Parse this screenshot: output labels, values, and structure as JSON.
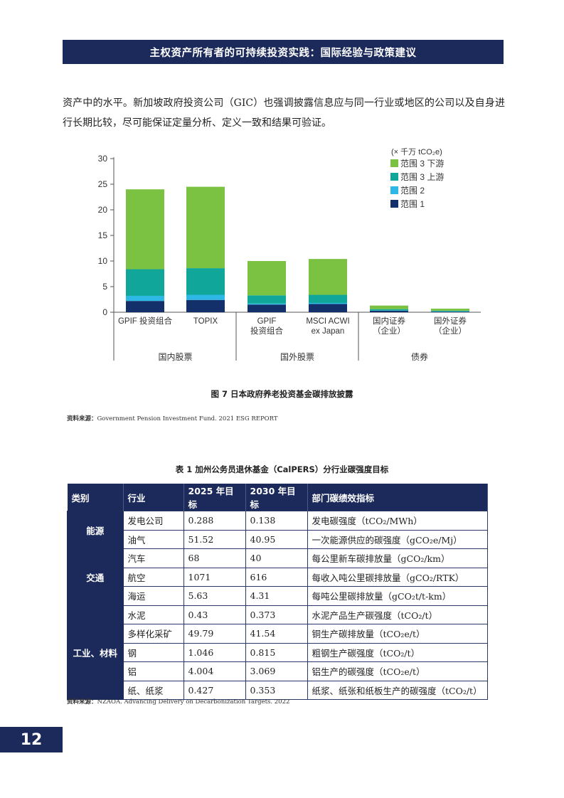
{
  "header": {
    "title": "主权资产所有者的可持续投资实践：国际经验与政策建议"
  },
  "body": {
    "paragraph": "资产中的水平。新加坡政府投资公司（GIC）也强调披露信息应与同一行业或地区的公司以及自身进行长期比较，尽可能保证定量分析、定义一致和结果可验证。"
  },
  "chart_data": {
    "type": "bar",
    "stacked": true,
    "unit_label": "(× 千万 tCO₂e)",
    "categories": [
      "GPIF 投资组合",
      "TOPIX",
      "GPIF|投资组合",
      "MSCI ACWI|ex Japan",
      "国内证券|（企业）",
      "国外证券|（企业）"
    ],
    "groups": [
      {
        "label": "国内股票",
        "categories": [
          0,
          1
        ]
      },
      {
        "label": "国外股票",
        "categories": [
          2,
          3
        ]
      },
      {
        "label": "债券",
        "categories": [
          4,
          5
        ]
      }
    ],
    "series": [
      {
        "name": "范围 1",
        "color": "#13306b",
        "values": [
          2.2,
          2.4,
          1.5,
          1.6,
          0.3,
          0.1
        ]
      },
      {
        "name": "范围 2",
        "color": "#2eb8e6",
        "values": [
          1.0,
          1.0,
          0.2,
          0.2,
          0.05,
          0.05
        ]
      },
      {
        "name": "范围 3 上游",
        "color": "#10a79a",
        "values": [
          5.2,
          5.2,
          1.6,
          1.6,
          0.25,
          0.15
        ]
      },
      {
        "name": "范围 3 下游",
        "color": "#7cc242",
        "values": [
          15.6,
          15.9,
          6.7,
          7.0,
          0.7,
          0.4
        ]
      }
    ],
    "ylim": [
      0,
      30
    ],
    "yticks": [
      0,
      5,
      10,
      15,
      20,
      25,
      30
    ],
    "legend_position": "top-right"
  },
  "figure": {
    "caption": "图 7  日本政府养老投资基金碳排放披露"
  },
  "source1": {
    "label": "资料来源：",
    "text": "Government Pension Investment Fund. 2021 ESG REPORT"
  },
  "table": {
    "caption": "表 1  加州公务员退休基金（CalPERS）分行业碳强度目标",
    "headers": [
      "类别",
      "行业",
      "2025 年目标",
      "2030 年目标",
      "部门碳绩效指标"
    ],
    "rows": [
      {
        "cat": "能源",
        "span": 2,
        "industry": "发电公司",
        "t2025": "0.288",
        "t2030": "0.138",
        "metric": "发电碳强度（tCO₂/MWh）"
      },
      {
        "industry": "油气",
        "t2025": "51.52",
        "t2030": "40.95",
        "metric": "一次能源供应的碳强度（gCO₂e/Mj）"
      },
      {
        "cat": "交通",
        "span": 3,
        "industry": "汽车",
        "t2025": "68",
        "t2030": "40",
        "metric": "每公里新车碳排放量（gCO₂/km）"
      },
      {
        "industry": "航空",
        "t2025": "1071",
        "t2030": "616",
        "metric": "每收入吨公里碳排放量（gCO₂/RTK）"
      },
      {
        "industry": "海运",
        "t2025": "5.63",
        "t2030": "4.31",
        "metric": "每吨公里碳排放量（gCO₂t/t-km）"
      },
      {
        "cat": "工业、材料",
        "span": 5,
        "industry": "水泥",
        "t2025": "0.43",
        "t2030": "0.373",
        "metric": "水泥产品生产碳强度（tCO₂/t）"
      },
      {
        "industry": "多样化采矿",
        "t2025": "49.79",
        "t2030": "41.54",
        "metric": "铜生产碳排放量（tCO₂e/t）"
      },
      {
        "industry": "钢",
        "t2025": "1.046",
        "t2030": "0.815",
        "metric": "粗钢生产碳强度（tCO₂/t）"
      },
      {
        "industry": "铝",
        "t2025": "4.004",
        "t2030": "3.069",
        "metric": "铝生产的碳强度（tCO₂e/t）"
      },
      {
        "industry": "纸、纸浆",
        "t2025": "0.427",
        "t2030": "0.353",
        "metric": "纸浆、纸张和纸板生产的碳强度（tCO₂/t）"
      }
    ]
  },
  "source2": {
    "label": "资料来源：",
    "text": "NZAOA. Advancing Delivery on Decarbonization Targets. 2022"
  },
  "page": {
    "number": "12"
  }
}
